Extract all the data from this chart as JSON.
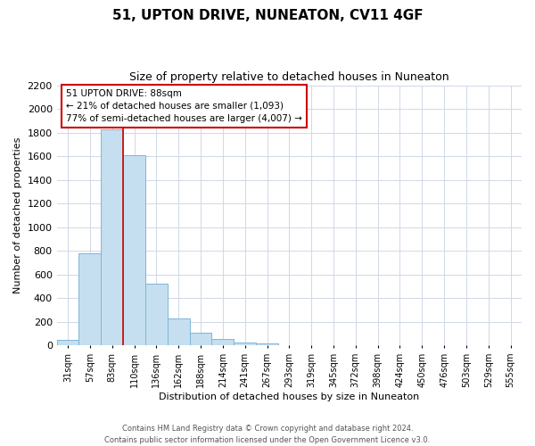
{
  "title": "51, UPTON DRIVE, NUNEATON, CV11 4GF",
  "subtitle": "Size of property relative to detached houses in Nuneaton",
  "xlabel": "Distribution of detached houses by size in Nuneaton",
  "ylabel": "Number of detached properties",
  "bar_labels": [
    "31sqm",
    "57sqm",
    "83sqm",
    "110sqm",
    "136sqm",
    "162sqm",
    "188sqm",
    "214sqm",
    "241sqm",
    "267sqm",
    "293sqm",
    "319sqm",
    "345sqm",
    "372sqm",
    "398sqm",
    "424sqm",
    "450sqm",
    "476sqm",
    "503sqm",
    "529sqm",
    "555sqm"
  ],
  "bar_values": [
    50,
    780,
    1830,
    1610,
    520,
    230,
    110,
    55,
    25,
    20,
    0,
    0,
    0,
    0,
    0,
    0,
    0,
    0,
    0,
    0,
    0
  ],
  "bar_color": "#c5dff0",
  "bar_edge_color": "#7fb5d5",
  "ylim": [
    0,
    2200
  ],
  "yticks": [
    0,
    200,
    400,
    600,
    800,
    1000,
    1200,
    1400,
    1600,
    1800,
    2000,
    2200
  ],
  "property_line_color": "#cc0000",
  "annotation_title": "51 UPTON DRIVE: 88sqm",
  "annotation_line1": "← 21% of detached houses are smaller (1,093)",
  "annotation_line2": "77% of semi-detached houses are larger (4,007) →",
  "annotation_box_color": "#ffffff",
  "annotation_box_edge": "#cc0000",
  "footnote1": "Contains HM Land Registry data © Crown copyright and database right 2024.",
  "footnote2": "Contains public sector information licensed under the Open Government Licence v3.0.",
  "background_color": "#ffffff",
  "grid_color": "#d0d8e8"
}
